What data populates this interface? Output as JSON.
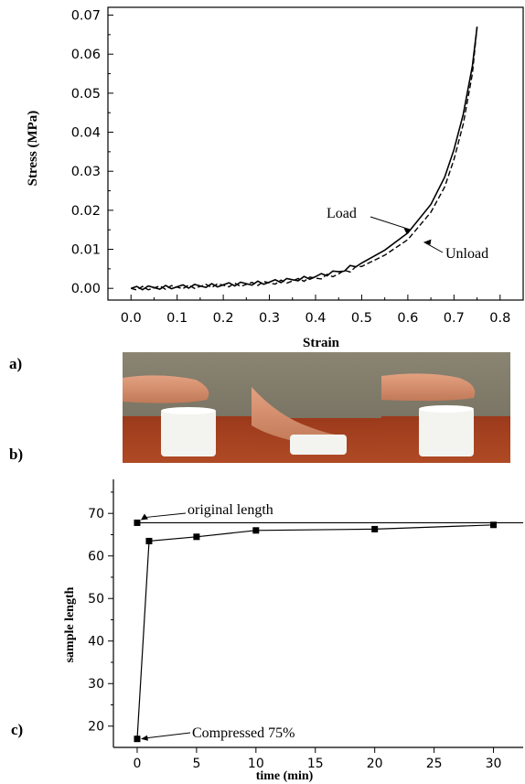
{
  "panel_labels": {
    "a": "a)",
    "b": "b)",
    "c": "c)"
  },
  "chart_data": [
    {
      "type": "line",
      "xlabel": "Strain",
      "ylabel": "Stress (MPa)",
      "xlim": [
        -0.05,
        0.85
      ],
      "ylim": [
        -0.003,
        0.072
      ],
      "xticks": [
        0.0,
        0.1,
        0.2,
        0.3,
        0.4,
        0.5,
        0.6,
        0.7,
        0.8
      ],
      "yticks": [
        0.0,
        0.01,
        0.02,
        0.03,
        0.04,
        0.05,
        0.06,
        0.07
      ],
      "xtick_labels": [
        "0.0",
        "0.1",
        "0.2",
        "0.3",
        "0.4",
        "0.5",
        "0.6",
        "0.7",
        "0.8"
      ],
      "ytick_labels": [
        "0.00",
        "0.01",
        "0.02",
        "0.03",
        "0.04",
        "0.05",
        "0.06",
        "0.07"
      ],
      "series": [
        {
          "name": "Load",
          "style": "solid",
          "x": [
            0.0,
            0.05,
            0.1,
            0.15,
            0.2,
            0.25,
            0.3,
            0.35,
            0.4,
            0.45,
            0.5,
            0.55,
            0.6,
            0.65,
            0.68,
            0.7,
            0.72,
            0.74,
            0.75
          ],
          "y": [
            0.0,
            0.0002,
            0.0004,
            0.0006,
            0.0009,
            0.0012,
            0.0016,
            0.0022,
            0.003,
            0.0043,
            0.0065,
            0.0098,
            0.0142,
            0.0215,
            0.0285,
            0.0355,
            0.0445,
            0.057,
            0.067
          ]
        },
        {
          "name": "Unload",
          "style": "dashed",
          "x": [
            0.0,
            0.05,
            0.1,
            0.15,
            0.2,
            0.25,
            0.3,
            0.35,
            0.4,
            0.45,
            0.5,
            0.55,
            0.6,
            0.65,
            0.68,
            0.7,
            0.72,
            0.74,
            0.75
          ],
          "y": [
            0.0,
            0.0001,
            0.0003,
            0.0005,
            0.0008,
            0.001,
            0.0014,
            0.0019,
            0.0026,
            0.0037,
            0.0056,
            0.0085,
            0.0125,
            0.0195,
            0.026,
            0.033,
            0.042,
            0.055,
            0.067
          ]
        }
      ],
      "annotations": [
        {
          "text": "Load",
          "points_to": [
            0.607,
            0.0145
          ]
        },
        {
          "text": "Unload",
          "points_to": [
            0.615,
            0.0128
          ]
        }
      ]
    },
    {
      "type": "line",
      "xlabel": "time (min)",
      "ylabel": "sample length",
      "xlim": [
        -2,
        32.5
      ],
      "ylim": [
        15,
        78
      ],
      "xticks": [
        0,
        5,
        10,
        15,
        20,
        25,
        30
      ],
      "yticks": [
        20,
        30,
        40,
        50,
        60,
        70
      ],
      "xtick_labels": [
        "0",
        "5",
        "10",
        "15",
        "20",
        "25",
        "30"
      ],
      "ytick_labels": [
        "20",
        "30",
        "40",
        "50",
        "60",
        "70"
      ],
      "series": [
        {
          "name": "",
          "marker": "square",
          "x": [
            0,
            1,
            5,
            10,
            20,
            30
          ],
          "y": [
            17,
            63.5,
            64.5,
            66,
            66.3,
            67.3
          ]
        },
        {
          "name": "",
          "style": "reference",
          "x": [
            0,
            32.5
          ],
          "y": [
            67.8,
            67.8
          ],
          "marker_at": [
            0,
            67.8
          ]
        }
      ],
      "annotations": [
        {
          "text": "original length",
          "points_to": [
            0,
            67.8
          ]
        },
        {
          "text": "Compressed 75%",
          "points_to": [
            0,
            17
          ]
        }
      ]
    }
  ],
  "photo": {
    "description_colors": {
      "wall": "#837d6b",
      "wall_dark": "#6a6557",
      "table": "#a5401f",
      "table_dark": "#7e2e15",
      "sample": "#f2f2ee",
      "finger": "#d58f6c"
    }
  }
}
